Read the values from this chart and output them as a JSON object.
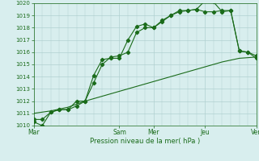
{
  "title": "",
  "xlabel": "Pression niveau de la mer( hPa )",
  "ylim": [
    1010,
    1020
  ],
  "yticks": [
    1010,
    1011,
    1012,
    1013,
    1014,
    1015,
    1016,
    1017,
    1018,
    1019,
    1020
  ],
  "xtick_labels": [
    "Mar",
    "Sam",
    "Mer",
    "Jeu",
    "Ven"
  ],
  "xtick_positions": [
    0,
    5,
    7,
    10,
    13
  ],
  "bg_color": "#d8eeee",
  "grid_color": "#b0d0d0",
  "line_color": "#1a6b1a",
  "line1_x": [
    0,
    0.5,
    1,
    1.5,
    2,
    2.5,
    3,
    3.5,
    4,
    4.5,
    5,
    5.5,
    6,
    6.5,
    7,
    7.5,
    8,
    8.5,
    9,
    9.5,
    10,
    10.5,
    11,
    11.5,
    12,
    12.5,
    13
  ],
  "line1_y": [
    1010.3,
    1010.0,
    1011.1,
    1011.3,
    1011.3,
    1011.6,
    1012.0,
    1014.1,
    1015.4,
    1015.5,
    1015.5,
    1017.0,
    1018.1,
    1018.3,
    1018.0,
    1018.5,
    1019.0,
    1019.3,
    1019.4,
    1019.5,
    1020.2,
    1020.1,
    1019.3,
    1019.4,
    1016.1,
    1016.0,
    1015.5
  ],
  "line2_x": [
    0,
    0.5,
    1,
    1.5,
    2,
    2.5,
    3,
    3.5,
    4,
    4.5,
    5,
    5.5,
    6,
    6.5,
    7,
    7.5,
    8,
    8.5,
    9,
    9.5,
    10,
    10.5,
    11,
    11.5,
    12,
    12.5,
    13
  ],
  "line2_y": [
    1010.5,
    1010.5,
    1011.1,
    1011.3,
    1011.3,
    1012.0,
    1012.0,
    1013.5,
    1015.0,
    1015.6,
    1015.7,
    1016.0,
    1017.6,
    1018.0,
    1018.0,
    1018.6,
    1019.0,
    1019.4,
    1019.4,
    1019.5,
    1019.3,
    1019.3,
    1019.4,
    1019.4,
    1016.1,
    1016.0,
    1015.7
  ],
  "line3_x": [
    0,
    1,
    2,
    3,
    4,
    5,
    6,
    7,
    8,
    9,
    10,
    11,
    12,
    13
  ],
  "line3_y": [
    1011.0,
    1011.2,
    1011.5,
    1012.0,
    1012.4,
    1012.8,
    1013.2,
    1013.6,
    1014.0,
    1014.4,
    1014.8,
    1015.2,
    1015.5,
    1015.6
  ],
  "figsize": [
    3.2,
    2.0
  ],
  "dpi": 100
}
